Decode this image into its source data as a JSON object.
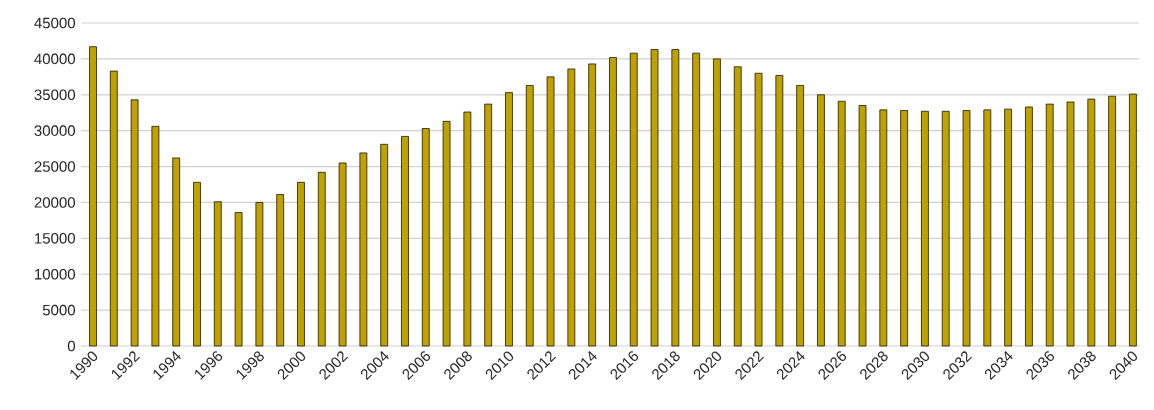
{
  "chart_data": {
    "type": "bar",
    "categories": [
      "1990",
      null,
      "1992",
      null,
      "1994",
      null,
      "1996",
      null,
      "1998",
      null,
      "2000",
      null,
      "2002",
      null,
      "2004",
      null,
      "2006",
      null,
      "2008",
      null,
      "2010",
      null,
      "2012",
      null,
      "2014",
      null,
      "2016",
      null,
      "2018",
      null,
      "2020",
      null,
      "2022",
      null,
      "2024",
      null,
      "2026",
      null,
      "2028",
      null,
      "2030",
      null,
      "2032",
      null,
      "2034",
      null,
      "2036",
      null,
      "2038",
      null,
      "2040"
    ],
    "values": [
      41700,
      38300,
      34300,
      30600,
      26200,
      22800,
      20100,
      18600,
      20000,
      21100,
      22800,
      24200,
      25500,
      26900,
      28100,
      29200,
      30300,
      31300,
      32600,
      33700,
      35300,
      36300,
      37500,
      38600,
      39300,
      40200,
      40800,
      41300,
      41300,
      40800,
      40000,
      38900,
      38000,
      37700,
      36300,
      35000,
      34100,
      33500,
      32900,
      32800,
      32700,
      32700,
      32800,
      32900,
      33000,
      33300,
      33700,
      34000,
      34400,
      34800,
      35100
    ],
    "color": "#bfa200",
    "ylim": [
      0,
      45000
    ],
    "yticks": [
      0,
      5000,
      10000,
      15000,
      20000,
      25000,
      30000,
      35000,
      40000,
      45000
    ],
    "grid": "y"
  }
}
